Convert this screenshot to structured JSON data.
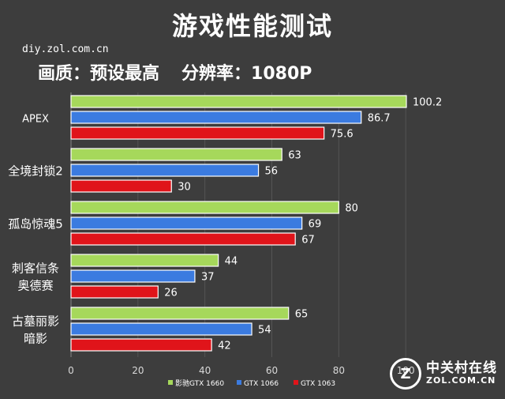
{
  "header": {
    "title": "游戏性能测试",
    "source": "diy.zol.com.cn",
    "setting_quality": "画质：预设最高",
    "setting_resolution": "分辨率：1080P"
  },
  "watermark": {
    "logo_glyph": "Z",
    "name_cn": "中关村在线",
    "name_en": "ZOL.COM.CN"
  },
  "colors": {
    "background": "#3d3d3d",
    "grid": "#555555",
    "axis_text": "#d9d9d9",
    "label_text": "#ffffff"
  },
  "chart_data": {
    "type": "bar",
    "orientation": "horizontal",
    "categories": [
      "APEX",
      "全境封锁2",
      "孤岛惊魂5",
      "刺客信条\n奥德赛",
      "古墓丽影\n暗影"
    ],
    "series": [
      {
        "name": "影驰GTX 1660",
        "color": "#a6d85b",
        "values": [
          100.2,
          63,
          80,
          44,
          65
        ]
      },
      {
        "name": "GTX 1066",
        "color": "#3b7be0",
        "values": [
          86.7,
          56,
          69,
          37,
          54
        ]
      },
      {
        "name": "GTX 1063",
        "color": "#e0141a",
        "values": [
          75.6,
          30,
          67,
          26,
          42
        ]
      }
    ],
    "value_labels": [
      [
        "100.2",
        "63",
        "80",
        "44",
        "65"
      ],
      [
        "86.7",
        "56",
        "69",
        "37",
        "54"
      ],
      [
        "75.6",
        "30",
        "67",
        "26",
        "42"
      ]
    ],
    "xlim": [
      0,
      120
    ],
    "x_ticks": [
      "0",
      "20",
      "40",
      "60",
      "80",
      "100"
    ],
    "grid": true,
    "legend_position": "bottom"
  }
}
